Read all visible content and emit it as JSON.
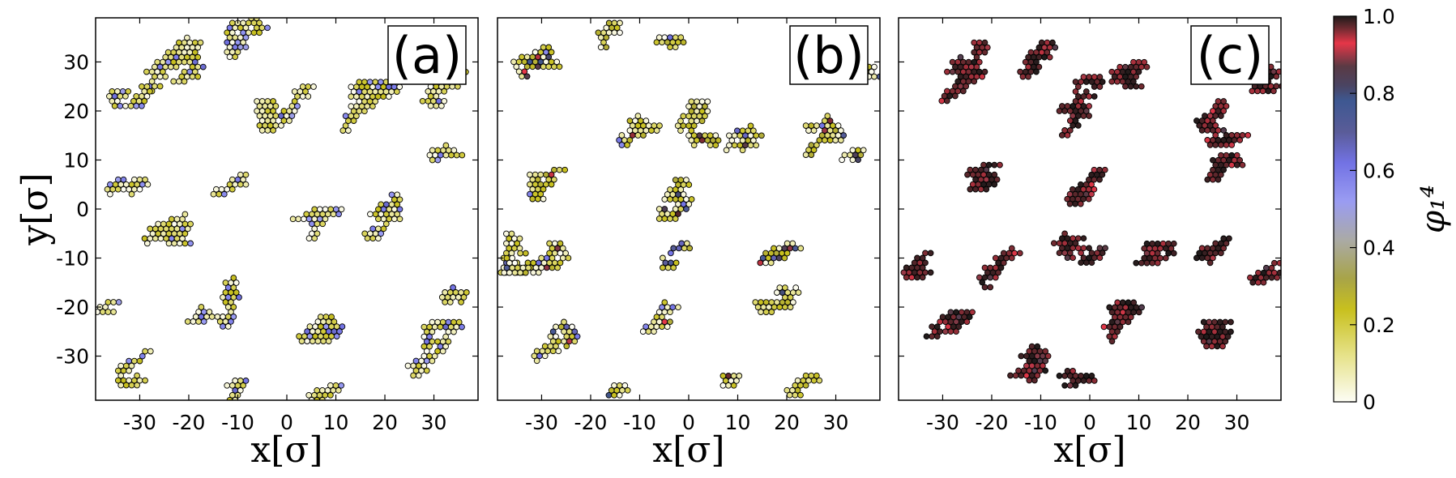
{
  "chart_data": [
    {
      "type": "scatter",
      "panel_label": "(a)",
      "xlabel": "x[σ]",
      "ylabel": "y[σ]",
      "xlim": [
        -39,
        39
      ],
      "ylim": [
        -39,
        39
      ],
      "xticks": [
        -30,
        -20,
        -10,
        0,
        10,
        20,
        30
      ],
      "yticks": [
        -30,
        -20,
        -10,
        0,
        10,
        20,
        30
      ],
      "color_variable": "φ₁⁴",
      "dominant_value_range": [
        0.0,
        0.25
      ],
      "minor_value_range": [
        0.5,
        0.65
      ],
      "clusters": [
        {
          "x": -22,
          "y": 28,
          "dx": 14,
          "dy": 10,
          "n": 90,
          "seed": 1
        },
        {
          "x": -34,
          "y": 23,
          "dx": 6,
          "dy": 2,
          "n": 24,
          "seed": 2
        },
        {
          "x": -10,
          "y": 34,
          "dx": 14,
          "dy": 5,
          "n": 40,
          "seed": 3
        },
        {
          "x": -5,
          "y": 20,
          "dx": 12,
          "dy": 8,
          "n": 70,
          "seed": 4
        },
        {
          "x": 12,
          "y": 17,
          "dx": 14,
          "dy": 12,
          "n": 90,
          "seed": 5
        },
        {
          "x": 31,
          "y": 24,
          "dx": 7,
          "dy": 5,
          "n": 35,
          "seed": 6
        },
        {
          "x": -30,
          "y": 6,
          "dx": 7,
          "dy": 6,
          "n": 40,
          "seed": 7
        },
        {
          "x": -29,
          "y": -8,
          "dx": 8,
          "dy": 10,
          "n": 60,
          "seed": 8
        },
        {
          "x": -10,
          "y": 6,
          "dx": 5,
          "dy": 3,
          "n": 20,
          "seed": 9
        },
        {
          "x": 4,
          "y": -5,
          "dx": 7,
          "dy": 6,
          "n": 40,
          "seed": 10
        },
        {
          "x": 17,
          "y": -5,
          "dx": 6,
          "dy": 12,
          "n": 60,
          "seed": 11
        },
        {
          "x": 33,
          "y": 10,
          "dx": 4,
          "dy": 4,
          "n": 20,
          "seed": 12
        },
        {
          "x": -18,
          "y": -19,
          "dx": 7,
          "dy": 8,
          "n": 55,
          "seed": 13
        },
        {
          "x": -30,
          "y": -31,
          "dx": 4,
          "dy": 6,
          "n": 30,
          "seed": 14
        },
        {
          "x": 8,
          "y": -22,
          "dx": 10,
          "dy": 6,
          "n": 55,
          "seed": 15
        },
        {
          "x": 28,
          "y": -30,
          "dx": 10,
          "dy": 8,
          "n": 60,
          "seed": 16
        },
        {
          "x": 10,
          "y": -36,
          "dx": 6,
          "dy": 3,
          "n": 20,
          "seed": 17
        },
        {
          "x": -10,
          "y": -36,
          "dx": 2,
          "dy": 3,
          "n": 10,
          "seed": 18
        },
        {
          "x": 35,
          "y": -18,
          "dx": 3,
          "dy": 5,
          "n": 15,
          "seed": 19
        },
        {
          "x": -37,
          "y": -20,
          "dx": 2,
          "dy": 4,
          "n": 10,
          "seed": 20
        }
      ]
    },
    {
      "type": "scatter",
      "panel_label": "(b)",
      "xlabel": "x[σ]",
      "ylabel": "",
      "xlim": [
        -39,
        39
      ],
      "ylim": [
        -39,
        39
      ],
      "xticks": [
        -30,
        -20,
        -10,
        0,
        10,
        20,
        30
      ],
      "yticks": [
        -30,
        -20,
        -10,
        0,
        10,
        20,
        30
      ],
      "color_variable": "φ₁⁴",
      "dominant_value_range": [
        0.0,
        0.3
      ],
      "minor_value_range": [
        0.55,
        1.0
      ],
      "clusters": [
        {
          "x": -28,
          "y": 32,
          "dx": 8,
          "dy": 7,
          "n": 55,
          "seed": 21
        },
        {
          "x": -19,
          "y": 33,
          "dx": 3,
          "dy": 5,
          "n": 20,
          "seed": 22
        },
        {
          "x": -6,
          "y": 35,
          "dx": 4,
          "dy": 4,
          "n": 15,
          "seed": 23
        },
        {
          "x": -12,
          "y": 18,
          "dx": 5,
          "dy": 5,
          "n": 30,
          "seed": 24
        },
        {
          "x": 0,
          "y": 15,
          "dx": 10,
          "dy": 8,
          "n": 70,
          "seed": 25
        },
        {
          "x": 11,
          "y": 14,
          "dx": 4,
          "dy": 10,
          "n": 45,
          "seed": 26
        },
        {
          "x": 25,
          "y": 17,
          "dx": 5,
          "dy": 10,
          "n": 45,
          "seed": 27
        },
        {
          "x": 34,
          "y": 28,
          "dx": 3,
          "dy": 5,
          "n": 15,
          "seed": 28
        },
        {
          "x": 34,
          "y": 13,
          "dx": 3,
          "dy": 3,
          "n": 15,
          "seed": 29
        },
        {
          "x": -28,
          "y": 7,
          "dx": 4,
          "dy": 6,
          "n": 30,
          "seed": 30
        },
        {
          "x": -6,
          "y": 0,
          "dx": 6,
          "dy": 7,
          "n": 45,
          "seed": 31
        },
        {
          "x": -2,
          "y": -8,
          "dx": 3,
          "dy": 4,
          "n": 15,
          "seed": 32
        },
        {
          "x": -24,
          "y": -9,
          "dx": 14,
          "dy": 4,
          "n": 75,
          "seed": 33
        },
        {
          "x": -36,
          "y": -12,
          "dx": 3,
          "dy": 4,
          "n": 20,
          "seed": 34
        },
        {
          "x": 19,
          "y": -9,
          "dx": 4,
          "dy": 4,
          "n": 25,
          "seed": 35
        },
        {
          "x": 18,
          "y": -21,
          "dx": 8,
          "dy": 5,
          "n": 45,
          "seed": 36
        },
        {
          "x": -26,
          "y": -26,
          "dx": 6,
          "dy": 6,
          "n": 40,
          "seed": 37
        },
        {
          "x": -6,
          "y": -23,
          "dx": 6,
          "dy": 4,
          "n": 30,
          "seed": 38
        },
        {
          "x": 25,
          "y": -34,
          "dx": 5,
          "dy": 4,
          "n": 25,
          "seed": 39
        },
        {
          "x": 7,
          "y": -36,
          "dx": 3,
          "dy": 2,
          "n": 12,
          "seed": 40
        },
        {
          "x": -13,
          "y": -36,
          "dx": 3,
          "dy": 2,
          "n": 12,
          "seed": 41
        }
      ]
    },
    {
      "type": "scatter",
      "panel_label": "(c)",
      "xlabel": "x[σ]",
      "ylabel": "",
      "xlim": [
        -39,
        39
      ],
      "ylim": [
        -39,
        39
      ],
      "xticks": [
        -30,
        -20,
        -10,
        0,
        10,
        20,
        30
      ],
      "yticks": [
        -30,
        -20,
        -10,
        0,
        10,
        20,
        30
      ],
      "color_variable": "φ₁⁴",
      "dominant_value_range": [
        0.95,
        1.0
      ],
      "minor_value_range": [
        0.85,
        0.95
      ],
      "clusters": [
        {
          "x": -28,
          "y": 28,
          "dx": 9,
          "dy": 9,
          "n": 70,
          "seed": 51
        },
        {
          "x": -12,
          "y": 28,
          "dx": 6,
          "dy": 8,
          "n": 40,
          "seed": 52
        },
        {
          "x": -4,
          "y": 20,
          "dx": 8,
          "dy": 8,
          "n": 50,
          "seed": 53
        },
        {
          "x": 10,
          "y": 26,
          "dx": 6,
          "dy": 10,
          "n": 50,
          "seed": 54
        },
        {
          "x": 24,
          "y": 20,
          "dx": 8,
          "dy": 8,
          "n": 55,
          "seed": 55
        },
        {
          "x": 32,
          "y": 30,
          "dx": 6,
          "dy": 7,
          "n": 40,
          "seed": 56
        },
        {
          "x": -20,
          "y": 8,
          "dx": 9,
          "dy": 6,
          "n": 45,
          "seed": 57
        },
        {
          "x": 2,
          "y": 6,
          "dx": 10,
          "dy": 6,
          "n": 50,
          "seed": 58
        },
        {
          "x": 24,
          "y": 6,
          "dx": 6,
          "dy": 6,
          "n": 35,
          "seed": 59
        },
        {
          "x": -33,
          "y": -8,
          "dx": 5,
          "dy": 7,
          "n": 40,
          "seed": 60
        },
        {
          "x": -17,
          "y": -10,
          "dx": 6,
          "dy": 7,
          "n": 40,
          "seed": 61
        },
        {
          "x": -4,
          "y": -5,
          "dx": 6,
          "dy": 8,
          "n": 45,
          "seed": 62
        },
        {
          "x": 10,
          "y": -12,
          "dx": 6,
          "dy": 6,
          "n": 35,
          "seed": 63
        },
        {
          "x": 24,
          "y": -8,
          "dx": 6,
          "dy": 6,
          "n": 35,
          "seed": 64
        },
        {
          "x": 36,
          "y": -14,
          "dx": 3,
          "dy": 6,
          "n": 20,
          "seed": 65
        },
        {
          "x": -30,
          "y": -24,
          "dx": 7,
          "dy": 6,
          "n": 40,
          "seed": 66
        },
        {
          "x": -14,
          "y": -30,
          "dx": 8,
          "dy": 6,
          "n": 45,
          "seed": 67
        },
        {
          "x": 4,
          "y": -26,
          "dx": 8,
          "dy": 8,
          "n": 45,
          "seed": 68
        },
        {
          "x": 26,
          "y": -28,
          "dx": 10,
          "dy": 6,
          "n": 50,
          "seed": 69
        },
        {
          "x": -4,
          "y": -36,
          "dx": 8,
          "dy": 3,
          "n": 25,
          "seed": 70
        }
      ]
    }
  ],
  "colorbar": {
    "label": "φ₁⁴",
    "ticks": [
      "0",
      "0.2",
      "0.4",
      "0.6",
      "0.8",
      "1.0"
    ],
    "tick_values": [
      0,
      0.2,
      0.4,
      0.6,
      0.8,
      1.0
    ],
    "colormap_stops": [
      {
        "v": 0.0,
        "c": "#fdfdf5"
      },
      {
        "v": 0.12,
        "c": "#e6e28a"
      },
      {
        "v": 0.24,
        "c": "#c8c01e"
      },
      {
        "v": 0.32,
        "c": "#a8a448"
      },
      {
        "v": 0.42,
        "c": "#aaaaa6"
      },
      {
        "v": 0.52,
        "c": "#9a9cf2"
      },
      {
        "v": 0.62,
        "c": "#7272e4"
      },
      {
        "v": 0.7,
        "c": "#5a5c98"
      },
      {
        "v": 0.78,
        "c": "#3e5892"
      },
      {
        "v": 0.82,
        "c": "#4a4462"
      },
      {
        "v": 0.87,
        "c": "#5a3a44"
      },
      {
        "v": 0.93,
        "c": "#e63648"
      },
      {
        "v": 0.97,
        "c": "#6a2a30"
      },
      {
        "v": 1.0,
        "c": "#1e1a1a"
      }
    ]
  }
}
